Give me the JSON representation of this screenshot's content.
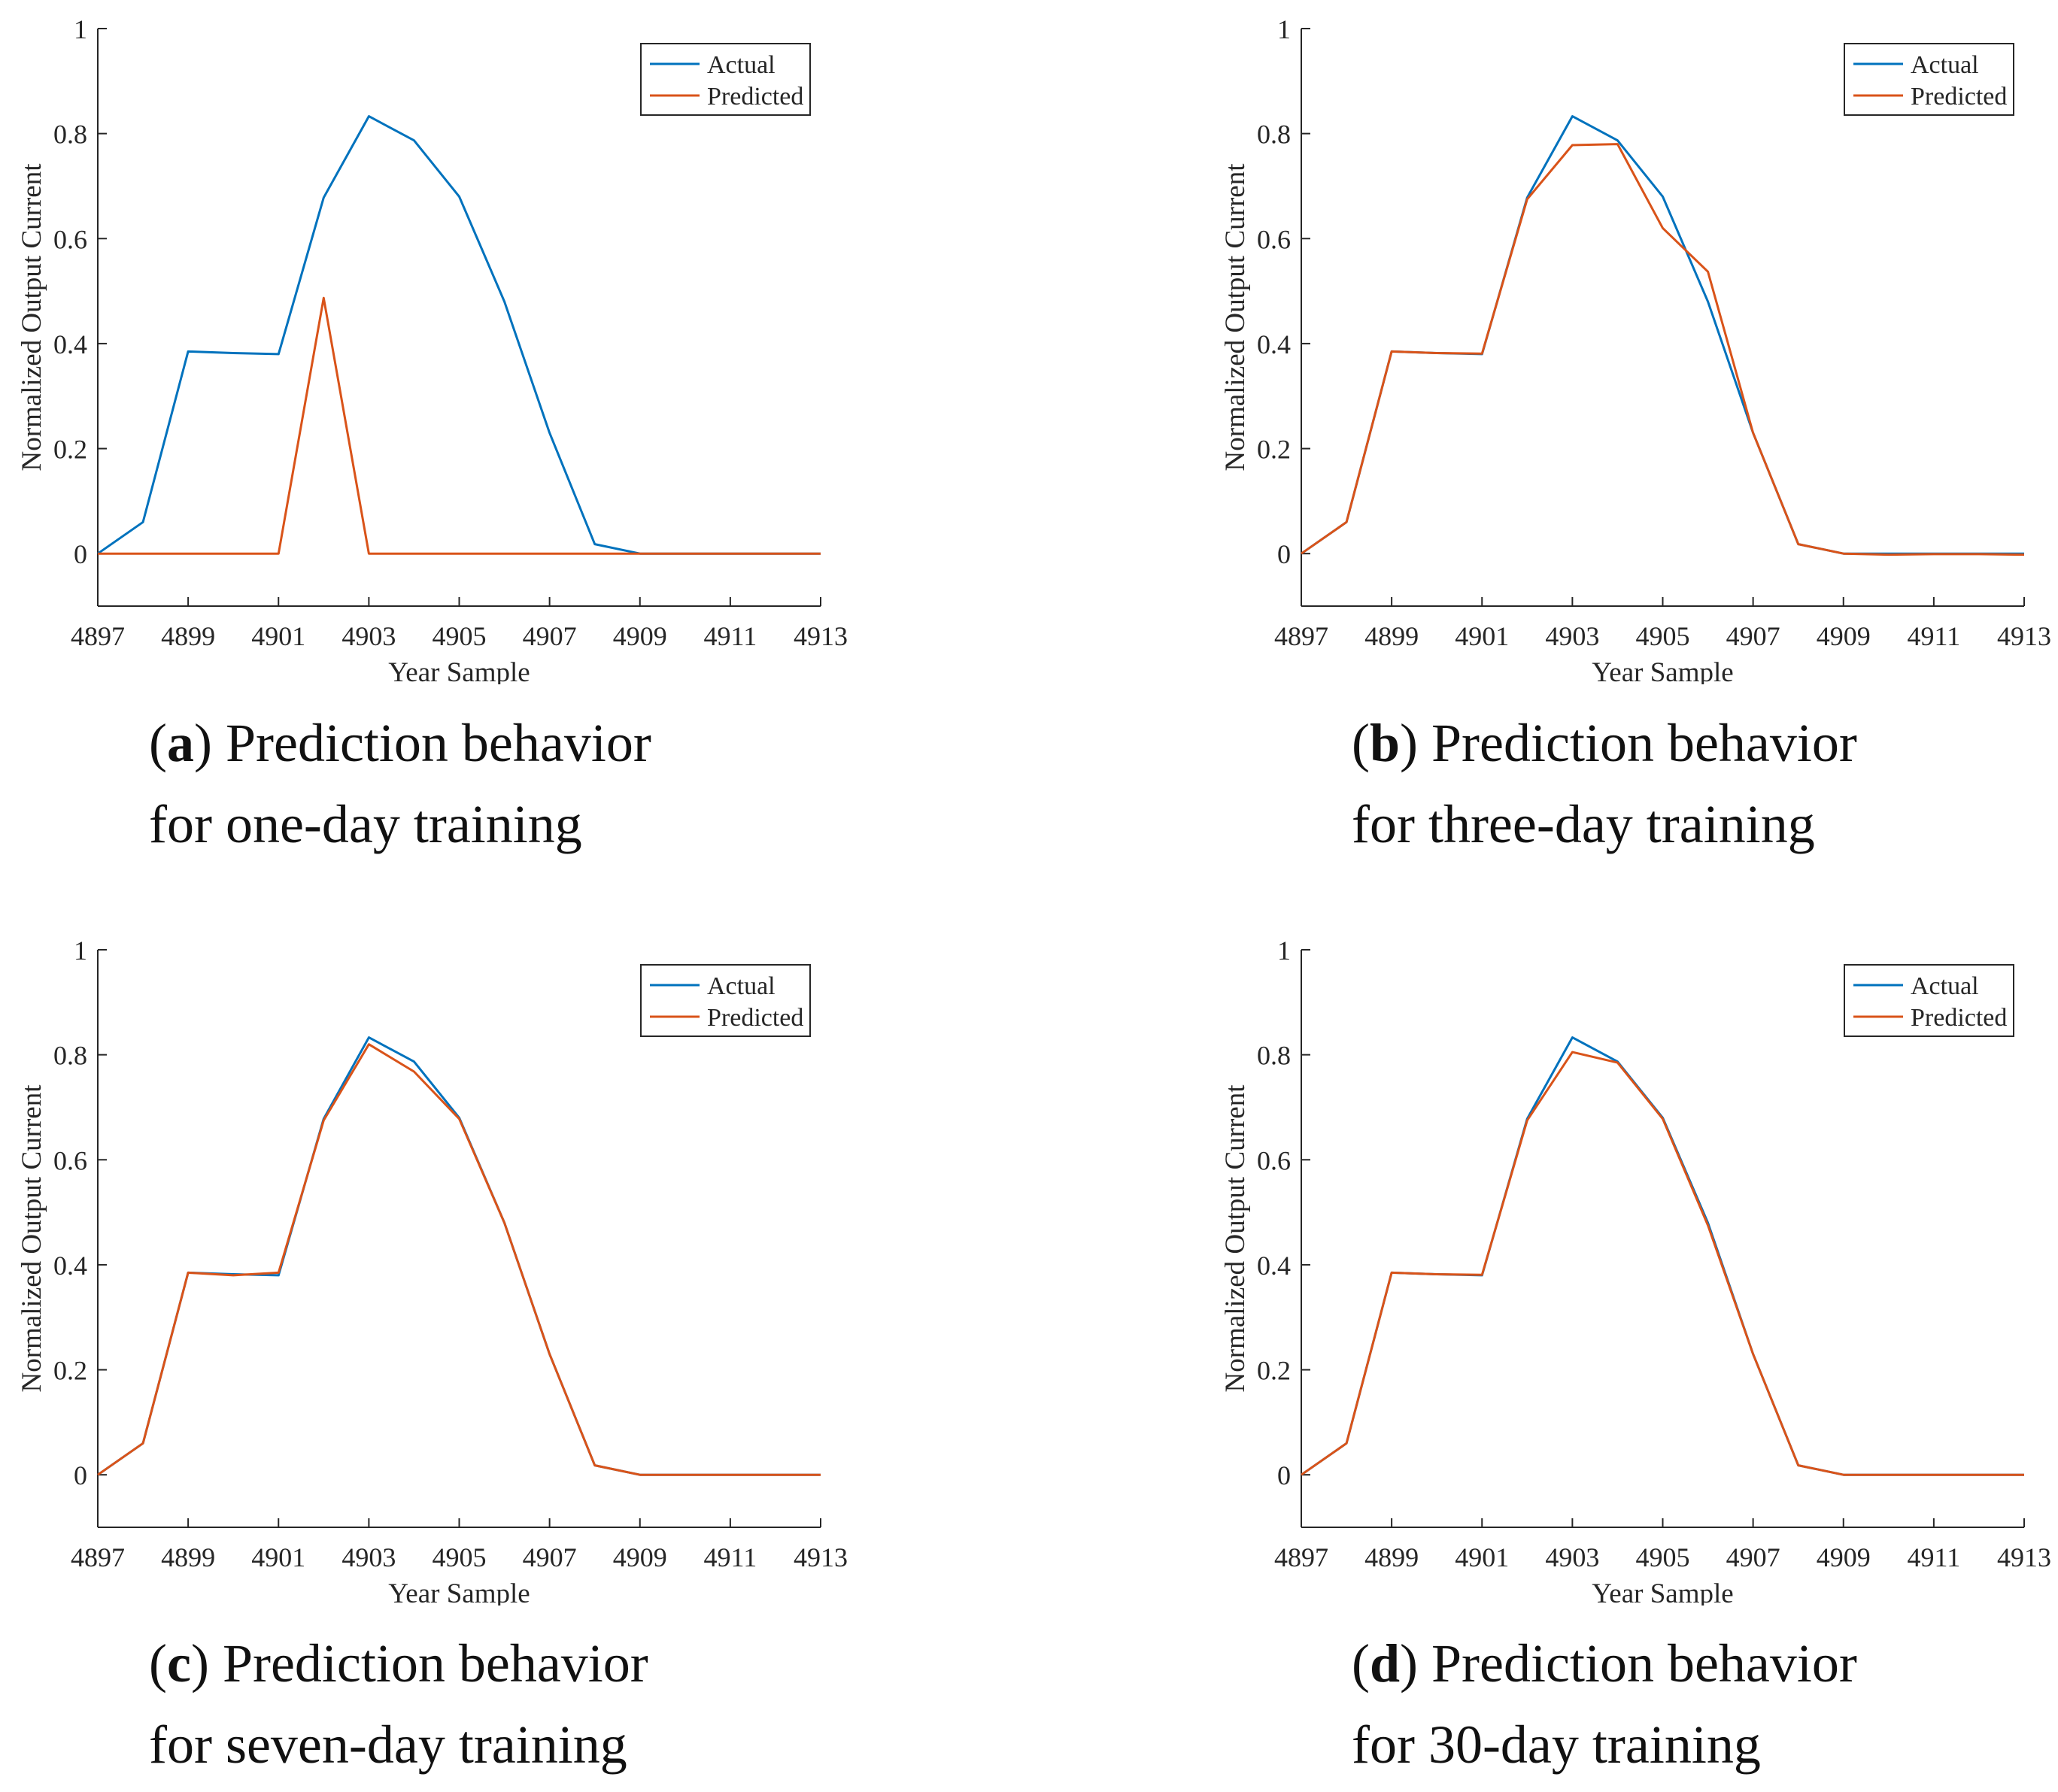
{
  "figure": {
    "colors": {
      "actual": "#0072BD",
      "predicted": "#D95319",
      "axis": "#262626"
    },
    "captions": [
      {
        "letter": "a",
        "line1": "Prediction behavior",
        "line2": "for one-day training"
      },
      {
        "letter": "b",
        "line1": "Prediction behavior",
        "line2": "for three-day training"
      },
      {
        "letter": "c",
        "line1": "Prediction behavior",
        "line2": "for seven-day training"
      },
      {
        "letter": "d",
        "line1": "Prediction behavior",
        "line2": "for 30-day training"
      }
    ]
  },
  "chart_data": [
    {
      "type": "line",
      "title": "",
      "xlabel": "Year Sample",
      "ylabel": "Normalized Output Current",
      "xlim": [
        4897,
        4913
      ],
      "ylim": [
        -0.1,
        1
      ],
      "xticks": [
        "4897",
        "4899",
        "4901",
        "4903",
        "4905",
        "4907",
        "4909",
        "4911",
        "4913"
      ],
      "yticks": [
        "0",
        "0.2",
        "0.4",
        "0.6",
        "0.8",
        "1"
      ],
      "legend": "top-right",
      "x": [
        4897,
        4898,
        4899,
        4900,
        4901,
        4902,
        4903,
        4904,
        4905,
        4906,
        4907,
        4908,
        4909,
        4910,
        4911,
        4912,
        4913
      ],
      "series": [
        {
          "name": "Actual",
          "values": [
            0,
            0.06,
            0.385,
            0.382,
            0.38,
            0.678,
            0.833,
            0.787,
            0.68,
            0.48,
            0.23,
            0.018,
            0,
            0,
            0,
            0,
            0
          ]
        },
        {
          "name": "Predicted",
          "values": [
            0,
            0,
            0,
            0,
            0,
            0.487,
            0,
            0,
            0,
            0,
            0,
            0,
            0,
            0,
            0,
            0,
            0
          ]
        }
      ]
    },
    {
      "type": "line",
      "title": "",
      "xlabel": "Year Sample",
      "ylabel": "Normalized Output Current",
      "xlim": [
        4897,
        4913
      ],
      "ylim": [
        -0.1,
        1
      ],
      "xticks": [
        "4897",
        "4899",
        "4901",
        "4903",
        "4905",
        "4907",
        "4909",
        "4911",
        "4913"
      ],
      "yticks": [
        "0",
        "0.2",
        "0.4",
        "0.6",
        "0.8",
        "1"
      ],
      "legend": "top-right",
      "x": [
        4897,
        4898,
        4899,
        4900,
        4901,
        4902,
        4903,
        4904,
        4905,
        4906,
        4907,
        4908,
        4909,
        4910,
        4911,
        4912,
        4913
      ],
      "series": [
        {
          "name": "Actual",
          "values": [
            0,
            0.06,
            0.385,
            0.382,
            0.38,
            0.678,
            0.833,
            0.787,
            0.68,
            0.48,
            0.23,
            0.018,
            0,
            0,
            0,
            0,
            0
          ]
        },
        {
          "name": "Predicted",
          "values": [
            0,
            0.06,
            0.385,
            0.382,
            0.381,
            0.675,
            0.778,
            0.78,
            0.62,
            0.537,
            0.23,
            0.018,
            0,
            -0.002,
            -0.001,
            -0.001,
            -0.002
          ]
        }
      ]
    },
    {
      "type": "line",
      "title": "",
      "xlabel": "Year Sample",
      "ylabel": "Normalized Output Current",
      "xlim": [
        4897,
        4913
      ],
      "ylim": [
        -0.1,
        1
      ],
      "xticks": [
        "4897",
        "4899",
        "4901",
        "4903",
        "4905",
        "4907",
        "4909",
        "4911",
        "4913"
      ],
      "yticks": [
        "0",
        "0.2",
        "0.4",
        "0.6",
        "0.8",
        "1"
      ],
      "legend": "top-right",
      "x": [
        4897,
        4898,
        4899,
        4900,
        4901,
        4902,
        4903,
        4904,
        4905,
        4906,
        4907,
        4908,
        4909,
        4910,
        4911,
        4912,
        4913
      ],
      "series": [
        {
          "name": "Actual",
          "values": [
            0,
            0.06,
            0.385,
            0.382,
            0.38,
            0.678,
            0.833,
            0.787,
            0.68,
            0.48,
            0.23,
            0.018,
            0,
            0,
            0,
            0,
            0
          ]
        },
        {
          "name": "Predicted",
          "values": [
            0,
            0.06,
            0.385,
            0.38,
            0.385,
            0.675,
            0.82,
            0.768,
            0.678,
            0.48,
            0.23,
            0.018,
            0,
            0,
            0,
            0,
            0
          ]
        }
      ]
    },
    {
      "type": "line",
      "title": "",
      "xlabel": "Year Sample",
      "ylabel": "Normalized Output Current",
      "xlim": [
        4897,
        4913
      ],
      "ylim": [
        -0.1,
        1
      ],
      "xticks": [
        "4897",
        "4899",
        "4901",
        "4903",
        "4905",
        "4907",
        "4909",
        "4911",
        "4913"
      ],
      "yticks": [
        "0",
        "0.2",
        "0.4",
        "0.6",
        "0.8",
        "1"
      ],
      "legend": "top-right",
      "x": [
        4897,
        4898,
        4899,
        4900,
        4901,
        4902,
        4903,
        4904,
        4905,
        4906,
        4907,
        4908,
        4909,
        4910,
        4911,
        4912,
        4913
      ],
      "series": [
        {
          "name": "Actual",
          "values": [
            0,
            0.06,
            0.385,
            0.382,
            0.38,
            0.678,
            0.833,
            0.787,
            0.68,
            0.48,
            0.23,
            0.018,
            0,
            0,
            0,
            0,
            0
          ]
        },
        {
          "name": "Predicted",
          "values": [
            0,
            0.06,
            0.385,
            0.382,
            0.381,
            0.675,
            0.805,
            0.785,
            0.678,
            0.475,
            0.23,
            0.018,
            0,
            0,
            0,
            0,
            0
          ]
        }
      ]
    }
  ]
}
